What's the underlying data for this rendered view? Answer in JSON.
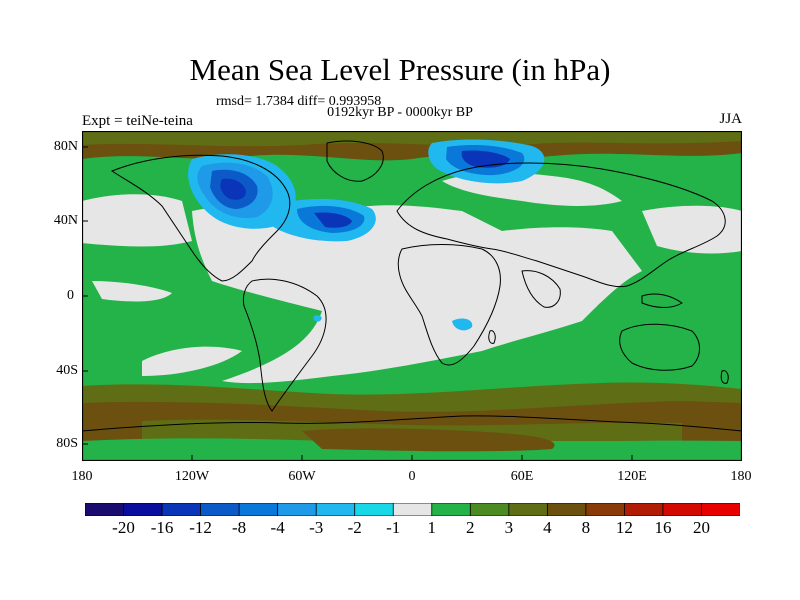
{
  "title": "Mean Sea Level Pressure (in hPa)",
  "stats": "rmsd= 1.7384 diff= 0.993958",
  "period": "0192kyr BP - 0000kyr BP",
  "experiment": "Expt = teiNe-teina",
  "season": "JJA",
  "lat_ticks": [
    "80N",
    "40N",
    "0",
    "40S",
    "80S"
  ],
  "lon_ticks": [
    "180",
    "120W",
    "60W",
    "0",
    "60E",
    "120E",
    "180"
  ],
  "colorbar": {
    "colors": [
      "#1a0c6e",
      "#0a0e9c",
      "#0a35b8",
      "#0b5ac8",
      "#0a78d8",
      "#1e9ae8",
      "#20b8ee",
      "#18d8e8",
      "#e6e6e6",
      "#23b348",
      "#4b8b21",
      "#5f6e14",
      "#6b5010",
      "#8a3a08",
      "#b01c04",
      "#d20a02",
      "#e80000"
    ],
    "labels": [
      "-20",
      "-16",
      "-12",
      "-8",
      "-4",
      "-3",
      "-2",
      "-1",
      "1",
      "2",
      "3",
      "4",
      "8",
      "12",
      "16",
      "20"
    ]
  }
}
